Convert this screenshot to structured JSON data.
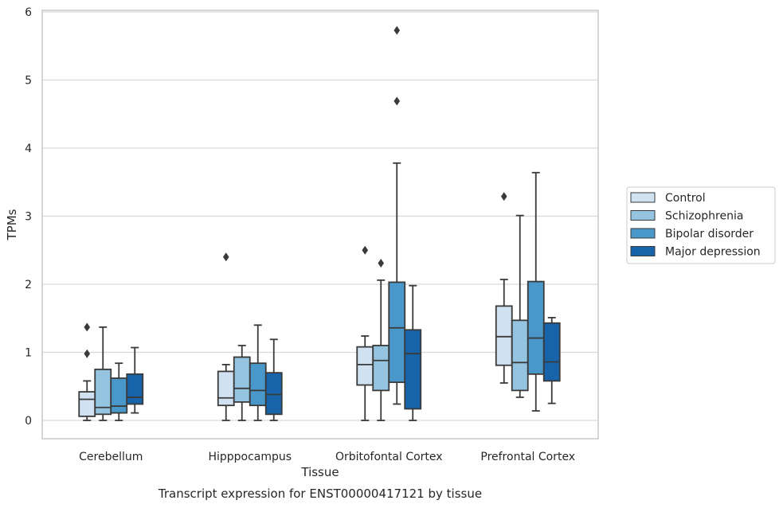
{
  "caption": "Transcript expression for ENST00000417121 by tissue",
  "chart_data": {
    "type": "box",
    "xlabel": "Tissue",
    "ylabel": "TPMs",
    "ylim": [
      -0.27,
      6.05
    ],
    "y_ticks": [
      0,
      1,
      2,
      3,
      4,
      5,
      6
    ],
    "grid": true,
    "legend_position": "right",
    "categories": [
      "Cerebellum",
      "Hipppocampus",
      "Orbitofontal Cortex",
      "Prefrontal Cortex"
    ],
    "series": [
      {
        "name": "Control",
        "color": "#d0e1f2",
        "boxes": [
          {
            "whisker_low": 0.0,
            "q1": 0.06,
            "median": 0.31,
            "q3": 0.42,
            "whisker_high": 0.58,
            "outliers": [
              0.98,
              1.37
            ]
          },
          {
            "whisker_low": 0.0,
            "q1": 0.22,
            "median": 0.33,
            "q3": 0.72,
            "whisker_high": 0.82,
            "outliers": [
              2.4
            ]
          },
          {
            "whisker_low": 0.0,
            "q1": 0.52,
            "median": 0.82,
            "q3": 1.08,
            "whisker_high": 1.24,
            "outliers": [
              2.5
            ]
          },
          {
            "whisker_low": 0.55,
            "q1": 0.81,
            "median": 1.23,
            "q3": 1.68,
            "whisker_high": 2.07,
            "outliers": [
              3.29
            ]
          }
        ]
      },
      {
        "name": "Schizophrenia",
        "color": "#94c4df",
        "boxes": [
          {
            "whisker_low": 0.0,
            "q1": 0.09,
            "median": 0.19,
            "q3": 0.75,
            "whisker_high": 1.37,
            "outliers": []
          },
          {
            "whisker_low": 0.0,
            "q1": 0.27,
            "median": 0.47,
            "q3": 0.93,
            "whisker_high": 1.1,
            "outliers": []
          },
          {
            "whisker_low": 0.0,
            "q1": 0.44,
            "median": 0.88,
            "q3": 1.1,
            "whisker_high": 2.06,
            "outliers": [
              2.31
            ]
          },
          {
            "whisker_low": 0.34,
            "q1": 0.44,
            "median": 0.85,
            "q3": 1.47,
            "whisker_high": 3.01,
            "outliers": []
          }
        ]
      },
      {
        "name": "Bipolar disorder",
        "color": "#4a98c9",
        "boxes": [
          {
            "whisker_low": 0.0,
            "q1": 0.11,
            "median": 0.21,
            "q3": 0.62,
            "whisker_high": 0.84,
            "outliers": []
          },
          {
            "whisker_low": 0.0,
            "q1": 0.22,
            "median": 0.44,
            "q3": 0.84,
            "whisker_high": 1.4,
            "outliers": []
          },
          {
            "whisker_low": 0.24,
            "q1": 0.56,
            "median": 1.36,
            "q3": 2.03,
            "whisker_high": 3.78,
            "outliers": [
              4.69,
              5.73
            ]
          },
          {
            "whisker_low": 0.14,
            "q1": 0.68,
            "median": 1.21,
            "q3": 2.04,
            "whisker_high": 3.64,
            "outliers": []
          }
        ]
      },
      {
        "name": "Major depression",
        "color": "#1764ab",
        "boxes": [
          {
            "whisker_low": 0.11,
            "q1": 0.24,
            "median": 0.34,
            "q3": 0.68,
            "whisker_high": 1.07,
            "outliers": []
          },
          {
            "whisker_low": 0.0,
            "q1": 0.09,
            "median": 0.38,
            "q3": 0.7,
            "whisker_high": 1.19,
            "outliers": []
          },
          {
            "whisker_low": 0.0,
            "q1": 0.17,
            "median": 0.98,
            "q3": 1.33,
            "whisker_high": 1.98,
            "outliers": []
          },
          {
            "whisker_low": 0.25,
            "q1": 0.58,
            "median": 0.86,
            "q3": 1.43,
            "whisker_high": 1.51,
            "outliers": []
          }
        ]
      }
    ]
  }
}
